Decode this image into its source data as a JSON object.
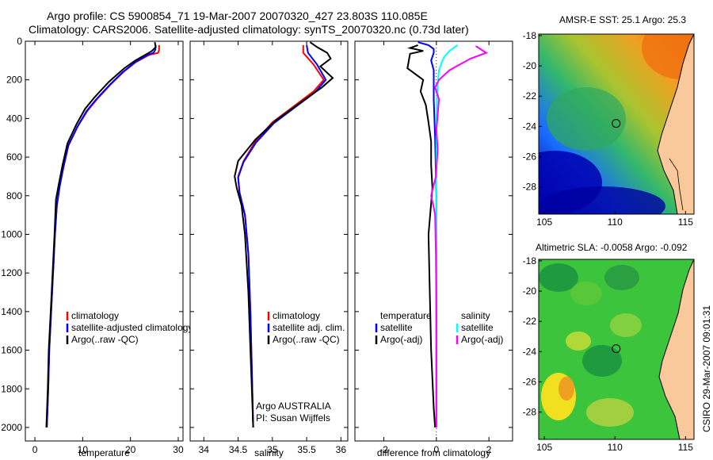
{
  "title_line1": "Argo profile: CS 5900854_71 19-Mar-2007 20070320_427 23.803S 110.085E",
  "title_line2": "Climatology: CARS2006. Satellite-adjusted climatology: synTS_20070320.nc (0.73d later)",
  "credit": "CSIRO 29-Mar-2007 09:01:31",
  "colors": {
    "clim": "#ff0000",
    "sat": "#0000ff",
    "argo": "#000000",
    "sal_sat": "#00ffff",
    "sal_argo": "#ff00ff"
  },
  "chart_data": [
    {
      "type": "line",
      "name": "temperature-profile",
      "xlabel": "temperature",
      "ylabel": "",
      "xlim": [
        -2,
        31
      ],
      "ylim": [
        2070,
        0
      ],
      "xticks": [
        0,
        10,
        20,
        30
      ],
      "yticks": [
        0,
        200,
        400,
        600,
        800,
        1000,
        1200,
        1400,
        1600,
        1800,
        2000
      ],
      "legend": [
        "climatology",
        "satellite-adjusted climatology",
        "Argo(..raw -QC)"
      ],
      "series": [
        {
          "name": "climatology",
          "color": "#ff0000",
          "points": [
            [
              26.0,
              20
            ],
            [
              26.0,
              45
            ],
            [
              25.8,
              60
            ],
            [
              24,
              70
            ],
            [
              21,
              110
            ],
            [
              18.5,
              160
            ],
            [
              16,
              220
            ],
            [
              13,
              300
            ],
            [
              11,
              360
            ],
            [
              9,
              440
            ],
            [
              7,
              540
            ],
            [
              6,
              650
            ],
            [
              5.2,
              750
            ],
            [
              4.6,
              850
            ],
            [
              4.2,
              1000
            ],
            [
              3.8,
              1200
            ],
            [
              3.4,
              1400
            ],
            [
              3.0,
              1600
            ],
            [
              2.8,
              1800
            ],
            [
              2.5,
              2000
            ]
          ]
        },
        {
          "name": "satellite",
          "color": "#0000ff",
          "points": [
            [
              25.3,
              20
            ],
            [
              25.2,
              45
            ],
            [
              24.8,
              60
            ],
            [
              23.5,
              72
            ],
            [
              20.8,
              112
            ],
            [
              18.3,
              162
            ],
            [
              15.8,
              222
            ],
            [
              12.8,
              302
            ],
            [
              10.8,
              362
            ],
            [
              8.9,
              442
            ],
            [
              7,
              540
            ],
            [
              6,
              650
            ],
            [
              5.2,
              750
            ],
            [
              4.6,
              850
            ],
            [
              4.2,
              1000
            ],
            [
              3.8,
              1200
            ],
            [
              3.4,
              1400
            ],
            [
              3.0,
              1600
            ],
            [
              2.8,
              1800
            ],
            [
              2.5,
              2000
            ]
          ]
        },
        {
          "name": "argo",
          "color": "#000000",
          "points": [
            [
              25.1,
              5
            ],
            [
              25.3,
              30
            ],
            [
              24.5,
              50
            ],
            [
              23.5,
              65
            ],
            [
              21,
              100
            ],
            [
              18.7,
              140
            ],
            [
              15.5,
              210
            ],
            [
              12.5,
              290
            ],
            [
              10.5,
              350
            ],
            [
              8.7,
              430
            ],
            [
              6.8,
              530
            ],
            [
              5.8,
              640
            ],
            [
              5.0,
              740
            ],
            [
              4.4,
              820
            ],
            [
              4.1,
              1000
            ],
            [
              3.7,
              1200
            ],
            [
              3.3,
              1400
            ],
            [
              2.9,
              1600
            ],
            [
              2.7,
              1800
            ],
            [
              2.4,
              2000
            ]
          ]
        }
      ]
    },
    {
      "type": "line",
      "name": "salinity-profile",
      "xlabel": "salinity",
      "xlim": [
        33.8,
        36.1
      ],
      "ylim": [
        2070,
        0
      ],
      "xticks": [
        34,
        34.5,
        35,
        35.5,
        36
      ],
      "legend": [
        "climatology",
        "satellite adj. clim.",
        "Argo(..raw -QC)"
      ],
      "annotation": [
        "Argo AUSTRALIA",
        "PI: Susan Wijffels"
      ],
      "series": [
        {
          "name": "climatology",
          "color": "#ff0000",
          "points": [
            [
              35.45,
              20
            ],
            [
              35.45,
              60
            ],
            [
              35.6,
              120
            ],
            [
              35.75,
              200
            ],
            [
              35.6,
              260
            ],
            [
              35.3,
              340
            ],
            [
              35.0,
              420
            ],
            [
              34.75,
              520
            ],
            [
              34.58,
              620
            ],
            [
              34.5,
              700
            ],
            [
              34.52,
              780
            ],
            [
              34.6,
              900
            ],
            [
              34.65,
              1100
            ],
            [
              34.68,
              1400
            ],
            [
              34.7,
              1700
            ],
            [
              34.72,
              2000
            ]
          ]
        },
        {
          "name": "satellite",
          "color": "#0000ff",
          "points": [
            [
              35.5,
              20
            ],
            [
              35.52,
              60
            ],
            [
              35.65,
              120
            ],
            [
              35.78,
              200
            ],
            [
              35.62,
              265
            ],
            [
              35.32,
              345
            ],
            [
              35.02,
              425
            ],
            [
              34.76,
              525
            ],
            [
              34.58,
              625
            ],
            [
              34.5,
              705
            ],
            [
              34.52,
              785
            ],
            [
              34.6,
              900
            ],
            [
              34.65,
              1100
            ],
            [
              34.68,
              1400
            ],
            [
              34.7,
              1700
            ],
            [
              34.72,
              2000
            ]
          ]
        },
        {
          "name": "argo",
          "color": "#000000",
          "points": [
            [
              35.55,
              5
            ],
            [
              35.65,
              30
            ],
            [
              35.8,
              60
            ],
            [
              35.85,
              90
            ],
            [
              35.7,
              130
            ],
            [
              35.88,
              190
            ],
            [
              35.72,
              240
            ],
            [
              35.4,
              320
            ],
            [
              35.05,
              410
            ],
            [
              34.75,
              510
            ],
            [
              34.5,
              620
            ],
            [
              34.45,
              700
            ],
            [
              34.48,
              760
            ],
            [
              34.55,
              850
            ],
            [
              34.6,
              1000
            ],
            [
              34.65,
              1300
            ],
            [
              34.68,
              1600
            ],
            [
              34.7,
              1800
            ],
            [
              34.72,
              2000
            ]
          ]
        }
      ]
    },
    {
      "type": "line",
      "name": "difference-profile",
      "xlabel": "difference from climatology",
      "xlim": [
        -3.1,
        2.9
      ],
      "ylim": [
        2070,
        0
      ],
      "xticks": [
        -2,
        0,
        2
      ],
      "legend_left": [
        "temperature",
        "satellite",
        "Argo(-adj)"
      ],
      "legend_right": [
        "salinity",
        "satellite",
        "Argo(-adj)"
      ],
      "series": [
        {
          "name": "temperature-satellite",
          "color": "#0000ff",
          "points": [
            [
              -0.7,
              5
            ],
            [
              -0.3,
              20
            ],
            [
              -0.1,
              40
            ],
            [
              -0.1,
              60
            ],
            [
              -0.2,
              100
            ],
            [
              -0.1,
              150
            ],
            [
              -0.1,
              200
            ],
            [
              -0.1,
              300
            ],
            [
              -0.05,
              500
            ],
            [
              0,
              800
            ],
            [
              0,
              1200
            ],
            [
              0,
              1600
            ],
            [
              0,
              2000
            ]
          ]
        },
        {
          "name": "temperature-argo",
          "color": "#000000",
          "points": [
            [
              -0.7,
              20
            ],
            [
              -1.0,
              35
            ],
            [
              -0.5,
              50
            ],
            [
              -1.0,
              65
            ],
            [
              -1.1,
              140
            ],
            [
              -0.5,
              200
            ],
            [
              -0.6,
              260
            ],
            [
              -0.4,
              330
            ],
            [
              -0.3,
              420
            ],
            [
              -0.2,
              520
            ],
            [
              -0.2,
              640
            ],
            [
              -0.15,
              760
            ],
            [
              -0.2,
              840
            ],
            [
              -0.3,
              1000
            ],
            [
              -0.25,
              1300
            ],
            [
              -0.2,
              1600
            ],
            [
              -0.1,
              1900
            ],
            [
              -0.05,
              2000
            ]
          ]
        },
        {
          "name": "salinity-satellite",
          "color": "#00ffff",
          "points": [
            [
              0.8,
              20
            ],
            [
              0.5,
              50
            ],
            [
              0.3,
              80
            ],
            [
              0.2,
              110
            ],
            [
              0.1,
              150
            ],
            [
              0.05,
              220
            ],
            [
              0.02,
              300
            ],
            [
              0,
              500
            ],
            [
              0,
              800
            ],
            [
              0,
              1200
            ],
            [
              0,
              1600
            ],
            [
              0,
              2000
            ]
          ]
        },
        {
          "name": "salinity-argo",
          "color": "#ff00ff",
          "points": [
            [
              1.5,
              25
            ],
            [
              1.9,
              60
            ],
            [
              1.3,
              90
            ],
            [
              0.5,
              150
            ],
            [
              0.1,
              200
            ],
            [
              -0.05,
              240
            ],
            [
              0.1,
              300
            ],
            [
              0.05,
              380
            ],
            [
              0.0,
              460
            ],
            [
              0.05,
              560
            ],
            [
              -0.02,
              700
            ],
            [
              -0.2,
              800
            ],
            [
              -0.1,
              860
            ],
            [
              -0.05,
              900
            ],
            [
              -0.02,
              1100
            ],
            [
              0,
              1400
            ],
            [
              0,
              1800
            ],
            [
              0,
              2000
            ]
          ]
        }
      ]
    }
  ],
  "maps": [
    {
      "name": "amsr-e-sst-map",
      "title": "AMSR-E SST: 25.1 Argo: 25.3",
      "xticks": [
        105,
        110,
        115
      ],
      "yticks": [
        -18,
        -20,
        -22,
        -24,
        -26,
        -28
      ],
      "xlim": [
        104.6,
        115.6
      ],
      "ylim": [
        -29.8,
        -17.9
      ],
      "argo_lon": 110.085,
      "argo_lat": -23.803
    },
    {
      "name": "altimetric-sla-map",
      "title": "Altimetric SLA: -0.0058 Argo: -0.092",
      "xticks": [
        105,
        110,
        115
      ],
      "yticks": [
        -18,
        -20,
        -22,
        -24,
        -26,
        -28
      ],
      "xlim": [
        104.6,
        115.6
      ],
      "ylim": [
        -29.8,
        -17.9
      ],
      "argo_lon": 110.085,
      "argo_lat": -23.803
    }
  ]
}
